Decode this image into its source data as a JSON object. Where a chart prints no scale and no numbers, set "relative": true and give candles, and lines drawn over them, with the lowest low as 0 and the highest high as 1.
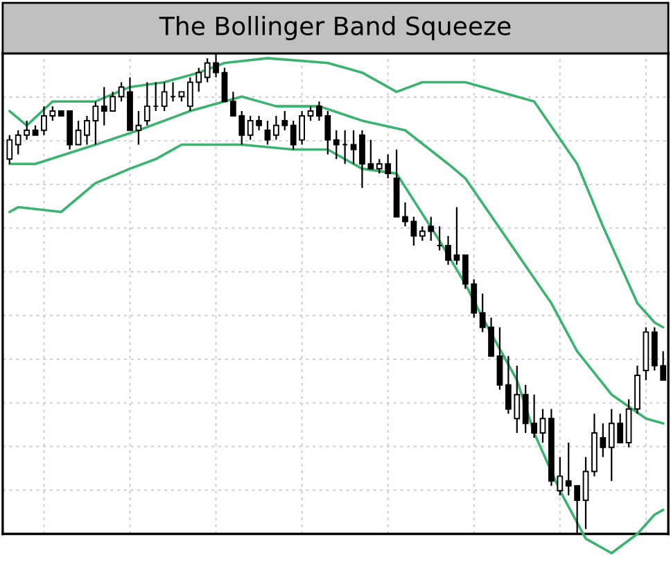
{
  "chart_data": {
    "type": "candlestick",
    "title": "The Bollinger Band Squeeze",
    "relative": true,
    "grid": true,
    "tick_labels": false,
    "categories": [
      null,
      null,
      null,
      null,
      null,
      null,
      null,
      null,
      null,
      null,
      null,
      null,
      null,
      null,
      null,
      null,
      null,
      null,
      null,
      null,
      null,
      null,
      null,
      null,
      null,
      null,
      null,
      null,
      null,
      null,
      null,
      null,
      null,
      null,
      null,
      null,
      null,
      null,
      null,
      null,
      null,
      null,
      null,
      null,
      null,
      null,
      null,
      null,
      null,
      null,
      null,
      null,
      null,
      null,
      null,
      null,
      null,
      null,
      null,
      null,
      null,
      null,
      null,
      null,
      null,
      null,
      null,
      null,
      null,
      null,
      null,
      null,
      null,
      null,
      null,
      null,
      null
    ],
    "ohlc": [
      [
        0.78,
        0.83,
        0.77,
        0.82
      ],
      [
        0.81,
        0.84,
        0.79,
        0.83
      ],
      [
        0.83,
        0.86,
        0.82,
        0.84
      ],
      [
        0.84,
        0.85,
        0.83,
        0.83
      ],
      [
        0.84,
        0.89,
        0.83,
        0.87
      ],
      [
        0.87,
        0.89,
        0.86,
        0.88
      ],
      [
        0.88,
        0.88,
        0.87,
        0.87
      ],
      [
        0.88,
        0.88,
        0.8,
        0.81
      ],
      [
        0.81,
        0.86,
        0.81,
        0.84
      ],
      [
        0.83,
        0.87,
        0.81,
        0.86
      ],
      [
        0.86,
        0.9,
        0.81,
        0.89
      ],
      [
        0.89,
        0.93,
        0.85,
        0.88
      ],
      [
        0.88,
        0.92,
        0.88,
        0.91
      ],
      [
        0.91,
        0.94,
        0.9,
        0.93
      ],
      [
        0.92,
        0.95,
        0.84,
        0.84
      ],
      [
        0.84,
        0.88,
        0.81,
        0.85
      ],
      [
        0.86,
        0.94,
        0.85,
        0.89
      ],
      [
        0.89,
        0.94,
        0.88,
        0.89
      ],
      [
        0.89,
        0.94,
        0.88,
        0.92
      ],
      [
        0.91,
        0.94,
        0.9,
        0.91
      ],
      [
        0.91,
        0.92,
        0.9,
        0.92
      ],
      [
        0.89,
        0.95,
        0.88,
        0.94
      ],
      [
        0.94,
        0.97,
        0.92,
        0.96
      ],
      [
        0.95,
        0.99,
        0.94,
        0.98
      ],
      [
        0.98,
        1.0,
        0.95,
        0.96
      ],
      [
        0.96,
        0.97,
        0.9,
        0.9
      ],
      [
        0.9,
        0.92,
        0.87,
        0.87
      ],
      [
        0.87,
        0.88,
        0.81,
        0.83
      ],
      [
        0.83,
        0.87,
        0.82,
        0.86
      ],
      [
        0.86,
        0.87,
        0.84,
        0.85
      ],
      [
        0.84,
        0.86,
        0.81,
        0.82
      ],
      [
        0.83,
        0.87,
        0.82,
        0.85
      ],
      [
        0.86,
        0.88,
        0.84,
        0.85
      ],
      [
        0.85,
        0.86,
        0.8,
        0.81
      ],
      [
        0.82,
        0.88,
        0.81,
        0.87
      ],
      [
        0.87,
        0.89,
        0.86,
        0.88
      ],
      [
        0.89,
        0.9,
        0.86,
        0.87
      ],
      [
        0.87,
        0.88,
        0.79,
        0.82
      ],
      [
        0.82,
        0.84,
        0.78,
        0.81
      ],
      [
        0.81,
        0.84,
        0.77,
        0.81
      ],
      [
        0.81,
        0.84,
        0.77,
        0.8
      ],
      [
        0.83,
        0.84,
        0.72,
        0.77
      ],
      [
        0.77,
        0.82,
        0.76,
        0.76
      ],
      [
        0.76,
        0.78,
        0.75,
        0.77
      ],
      [
        0.77,
        0.79,
        0.74,
        0.75
      ],
      [
        0.74,
        0.8,
        0.66,
        0.66
      ],
      [
        0.66,
        0.69,
        0.64,
        0.65
      ],
      [
        0.65,
        0.66,
        0.6,
        0.62
      ],
      [
        0.62,
        0.64,
        0.61,
        0.63
      ],
      [
        0.64,
        0.66,
        0.61,
        0.63
      ],
      [
        0.6,
        0.64,
        0.59,
        0.6
      ],
      [
        0.6,
        0.62,
        0.56,
        0.57
      ],
      [
        0.58,
        0.68,
        0.56,
        0.57
      ],
      [
        0.58,
        0.58,
        0.51,
        0.52
      ],
      [
        0.52,
        0.53,
        0.45,
        0.46
      ],
      [
        0.46,
        0.5,
        0.42,
        0.43
      ],
      [
        0.43,
        0.45,
        0.37,
        0.37
      ],
      [
        0.37,
        0.43,
        0.3,
        0.31
      ],
      [
        0.31,
        0.37,
        0.25,
        0.26
      ],
      [
        0.24,
        0.35,
        0.21,
        0.29
      ],
      [
        0.29,
        0.31,
        0.21,
        0.23
      ],
      [
        0.23,
        0.29,
        0.2,
        0.21
      ],
      [
        0.21,
        0.26,
        0.19,
        0.24
      ],
      [
        0.24,
        0.26,
        0.1,
        0.11
      ],
      [
        0.09,
        0.16,
        0.08,
        0.12
      ],
      [
        0.11,
        0.19,
        0.08,
        0.1
      ],
      [
        0.1,
        0.1,
        0.0,
        0.07
      ],
      [
        0.07,
        0.16,
        0.01,
        0.13
      ],
      [
        0.13,
        0.25,
        0.12,
        0.21
      ],
      [
        0.2,
        0.23,
        0.16,
        0.18
      ],
      [
        0.18,
        0.26,
        0.11,
        0.23
      ],
      [
        0.23,
        0.25,
        0.19,
        0.19
      ],
      [
        0.19,
        0.28,
        0.18,
        0.26
      ],
      [
        0.26,
        0.35,
        0.25,
        0.33
      ],
      [
        0.34,
        0.43,
        0.32,
        0.42
      ],
      [
        0.42,
        0.43,
        0.34,
        0.35
      ],
      [
        0.35,
        0.38,
        0.32,
        0.32
      ]
    ],
    "series": [
      {
        "type": "line",
        "color": "#3cb371",
        "values": [
          0.88,
          null,
          0.85,
          null,
          null,
          0.9,
          null,
          null,
          null,
          null,
          0.9,
          null,
          null,
          null,
          0.93,
          null,
          null,
          null,
          0.94,
          null,
          null,
          null,
          0.96,
          null,
          null,
          0.98,
          null,
          null,
          null,
          null,
          0.99,
          null,
          null,
          null,
          null,
          null,
          null,
          0.98,
          null,
          null,
          null,
          0.96,
          null,
          null,
          null,
          0.92,
          null,
          null,
          0.94,
          null,
          null,
          null,
          null,
          0.94,
          null,
          null,
          null,
          null,
          null,
          null,
          null,
          0.9,
          null,
          null,
          null,
          null,
          0.77,
          null,
          null,
          0.64,
          null,
          null,
          null,
          0.48,
          null,
          0.44,
          0.43
        ]
      },
      {
        "type": "line",
        "color": "#3cb371",
        "values": [
          0.77,
          null,
          null,
          0.77,
          null,
          null,
          null,
          null,
          null,
          null,
          0.81,
          null,
          null,
          null,
          null,
          0.84,
          null,
          null,
          null,
          null,
          null,
          0.88,
          null,
          null,
          null,
          null,
          null,
          0.91,
          null,
          null,
          null,
          0.89,
          null,
          null,
          null,
          null,
          0.89,
          null,
          null,
          null,
          null,
          0.86,
          null,
          null,
          null,
          null,
          0.84,
          null,
          null,
          null,
          null,
          0.77,
          null,
          0.74,
          null,
          null,
          null,
          null,
          null,
          null,
          null,
          null,
          null,
          0.48,
          null,
          null,
          0.38,
          null,
          null,
          null,
          0.29,
          null,
          null,
          null,
          0.24,
          null,
          0.23
        ]
      },
      {
        "type": "line",
        "color": "#3cb371",
        "values": [
          0.67,
          0.68,
          null,
          null,
          null,
          null,
          0.67,
          null,
          null,
          null,
          0.73,
          null,
          null,
          null,
          0.76,
          null,
          null,
          0.78,
          null,
          null,
          0.81,
          null,
          null,
          null,
          null,
          null,
          null,
          0.81,
          null,
          null,
          null,
          null,
          null,
          0.8,
          null,
          null,
          null,
          0.8,
          null,
          null,
          null,
          0.76,
          null,
          null,
          null,
          0.75,
          null,
          null,
          null,
          null,
          0.61,
          null,
          null,
          0.52,
          null,
          0.45,
          null,
          null,
          null,
          0.32,
          null,
          0.21,
          null,
          null,
          0.09,
          null,
          null,
          -0.01,
          null,
          null,
          -0.04,
          null,
          null,
          0.0,
          null,
          0.04,
          0.05
        ]
      }
    ]
  }
}
